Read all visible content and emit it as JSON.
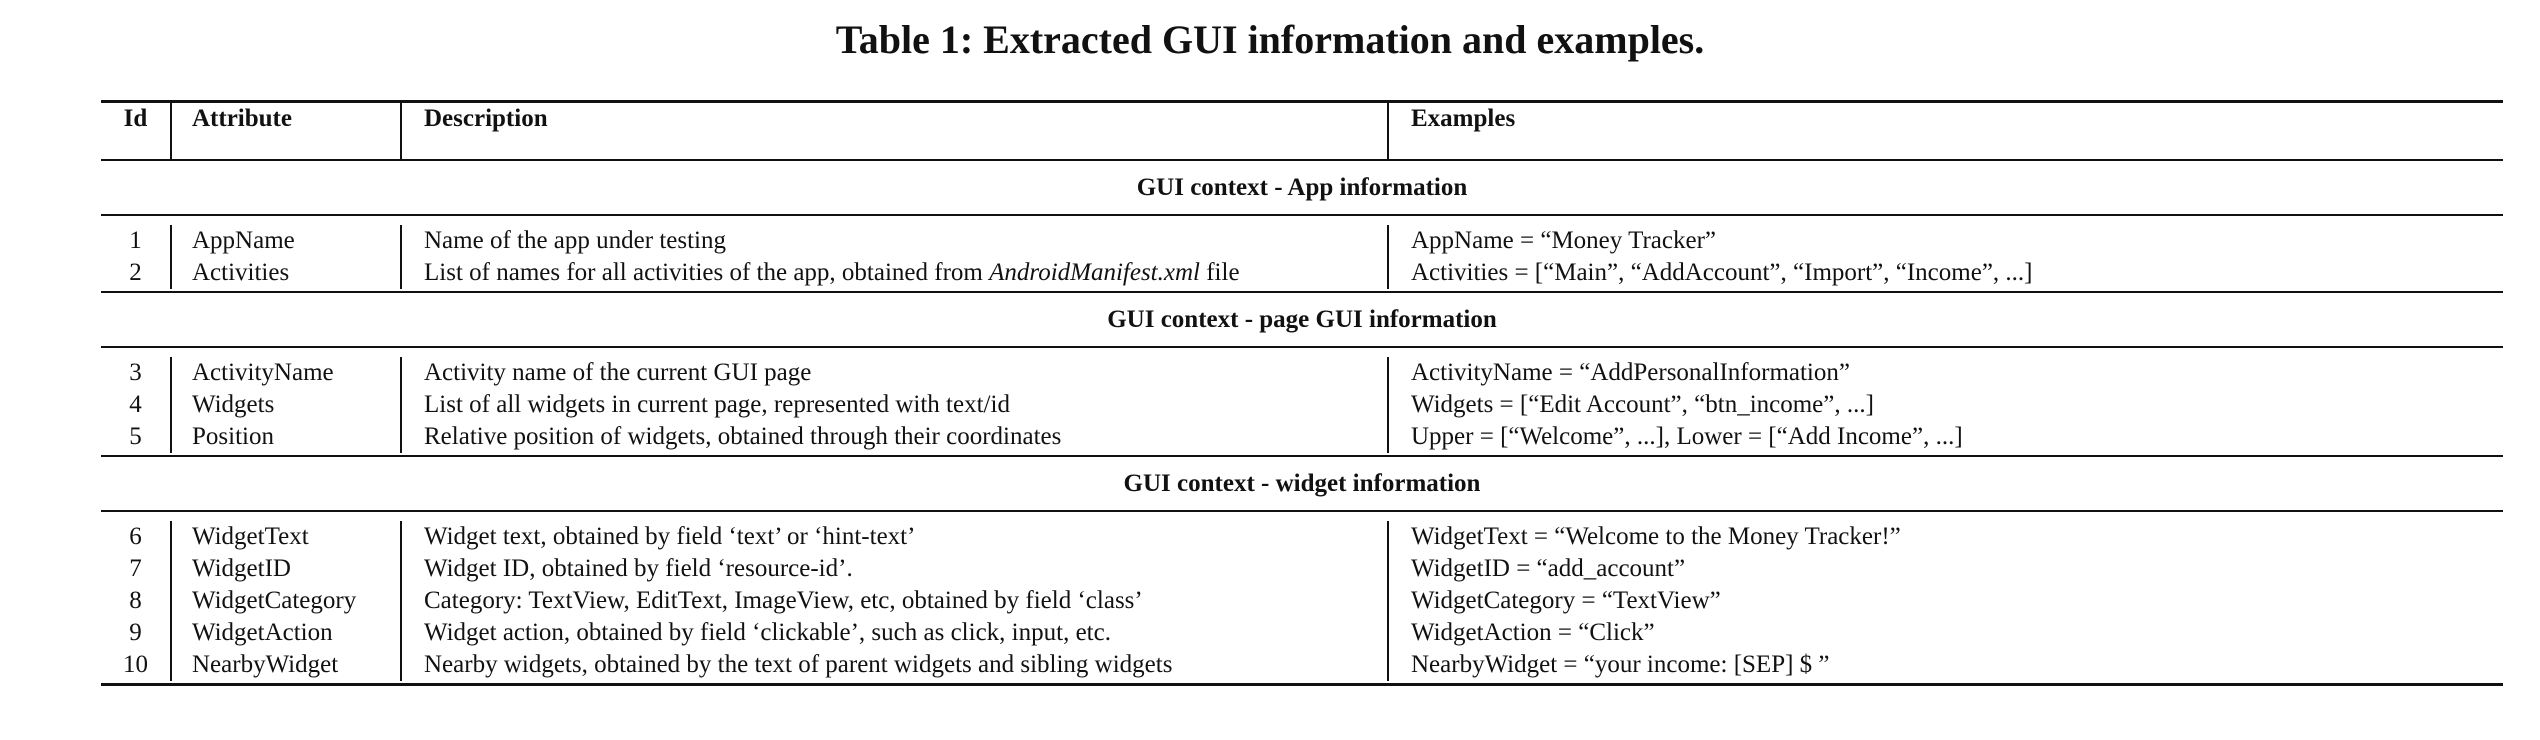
{
  "caption": "Table 1: Extracted GUI information and examples.",
  "columns": {
    "id": "Id",
    "attribute": "Attribute",
    "description": "Description",
    "examples": "Examples"
  },
  "sections": [
    {
      "title": "GUI context - App information",
      "rows": [
        {
          "id": "1",
          "attribute": "AppName",
          "description": "Name of the app under testing",
          "example": "AppName = “Money Tracker”"
        },
        {
          "id": "2",
          "attribute": "Activities",
          "description_pre": "List of names for all activities of the app, obtained from ",
          "description_em": "AndroidManifest.xml",
          "description_post": " file",
          "example": "Activities = [“Main”, “AddAccount”, “Import”, “Income”, ...]"
        }
      ]
    },
    {
      "title": "GUI context - page GUI information",
      "rows": [
        {
          "id": "3",
          "attribute": "ActivityName",
          "description": "Activity name of the current GUI page",
          "example": "ActivityName = “AddPersonalInformation”"
        },
        {
          "id": "4",
          "attribute": "Widgets",
          "description": "List of all widgets in current page, represented with text/id",
          "example": "Widgets = [“Edit Account”, “btn_income”, ...]"
        },
        {
          "id": "5",
          "attribute": "Position",
          "description": "Relative position of widgets, obtained through their coordinates",
          "example": "Upper = [“Welcome”, ...], Lower = [“Add Income”, ...]"
        }
      ]
    },
    {
      "title": "GUI context - widget information",
      "rows": [
        {
          "id": "6",
          "attribute": "WidgetText",
          "description": "Widget text, obtained by field ‘text’ or ‘hint-text’",
          "example": "WidgetText = “Welcome to the Money Tracker!”"
        },
        {
          "id": "7",
          "attribute": "WidgetID",
          "description": "Widget ID, obtained by field ‘resource-id’.",
          "example": "WidgetID = “add_account”"
        },
        {
          "id": "8",
          "attribute": "WidgetCategory",
          "description": "Category: TextView, EditText, ImageView, etc, obtained by field ‘class’",
          "example": "WidgetCategory = “TextView”"
        },
        {
          "id": "9",
          "attribute": "WidgetAction",
          "description": "Widget action, obtained by field ‘clickable’, such as click, input, etc.",
          "example": "WidgetAction = “Click”"
        },
        {
          "id": "10",
          "attribute": "NearbyWidget",
          "description": "Nearby widgets, obtained by the text of parent widgets and sibling widgets",
          "example": "NearbyWidget = “your income: [SEP] $ ”"
        }
      ]
    }
  ]
}
